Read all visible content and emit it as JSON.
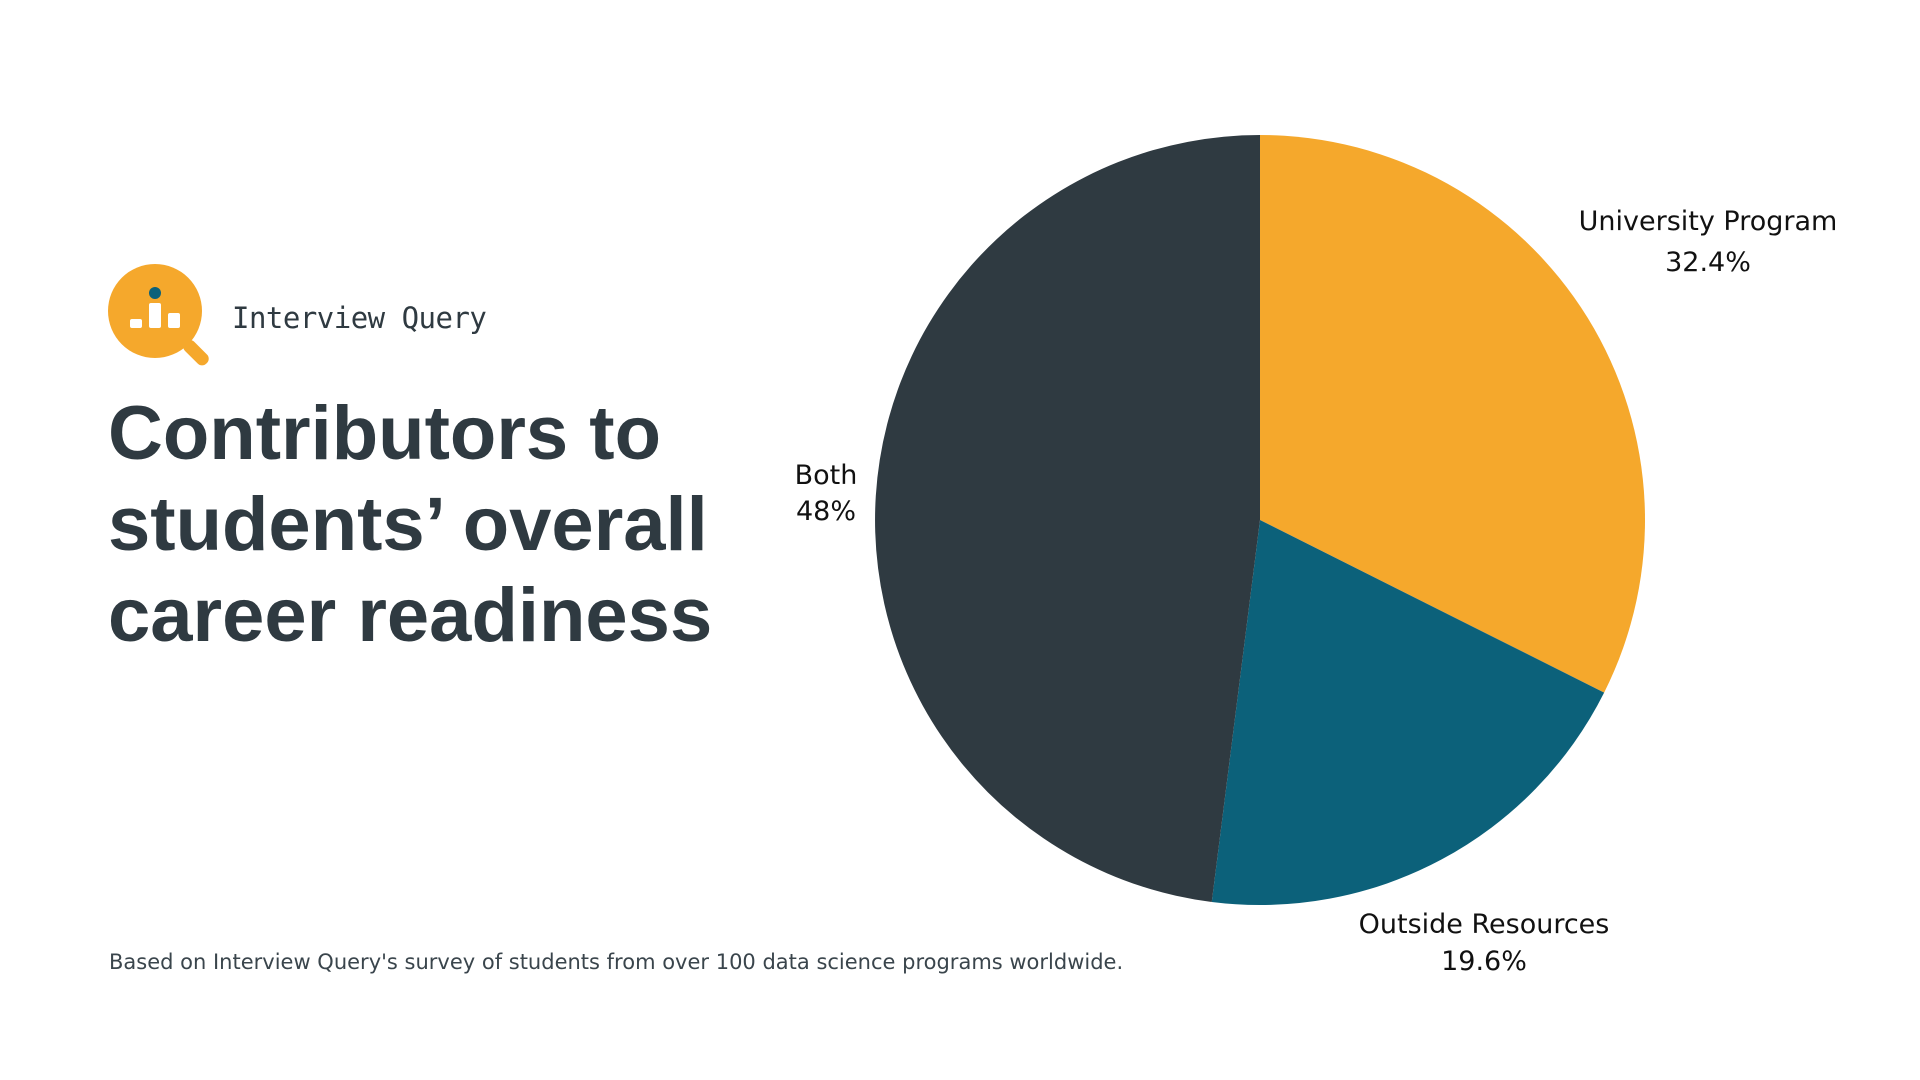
{
  "brand": {
    "name": "Interview Query",
    "logo_icon": "magnifier-bar-chart-icon",
    "logo_color": "#f5a82c"
  },
  "title": {
    "lines": [
      "Contributors to",
      "students’ overall",
      "career readiness"
    ]
  },
  "footnote": "Based on Interview Query's survey of students from over 100 data science programs worldwide.",
  "chart_data": {
    "type": "pie",
    "title": "Contributors to students’ overall career readiness",
    "slices": [
      {
        "label": "University Program",
        "value": 32.4,
        "value_label": "32.4%",
        "color": "#f5a82c"
      },
      {
        "label": "Outside Resources",
        "value": 19.6,
        "value_label": "19.6%",
        "color": "#0c617a"
      },
      {
        "label": "Both",
        "value": 48,
        "value_label": "48%",
        "color": "#2f3a41"
      }
    ],
    "start_angle": "12 o'clock",
    "direction": "clockwise",
    "legend": "none"
  }
}
